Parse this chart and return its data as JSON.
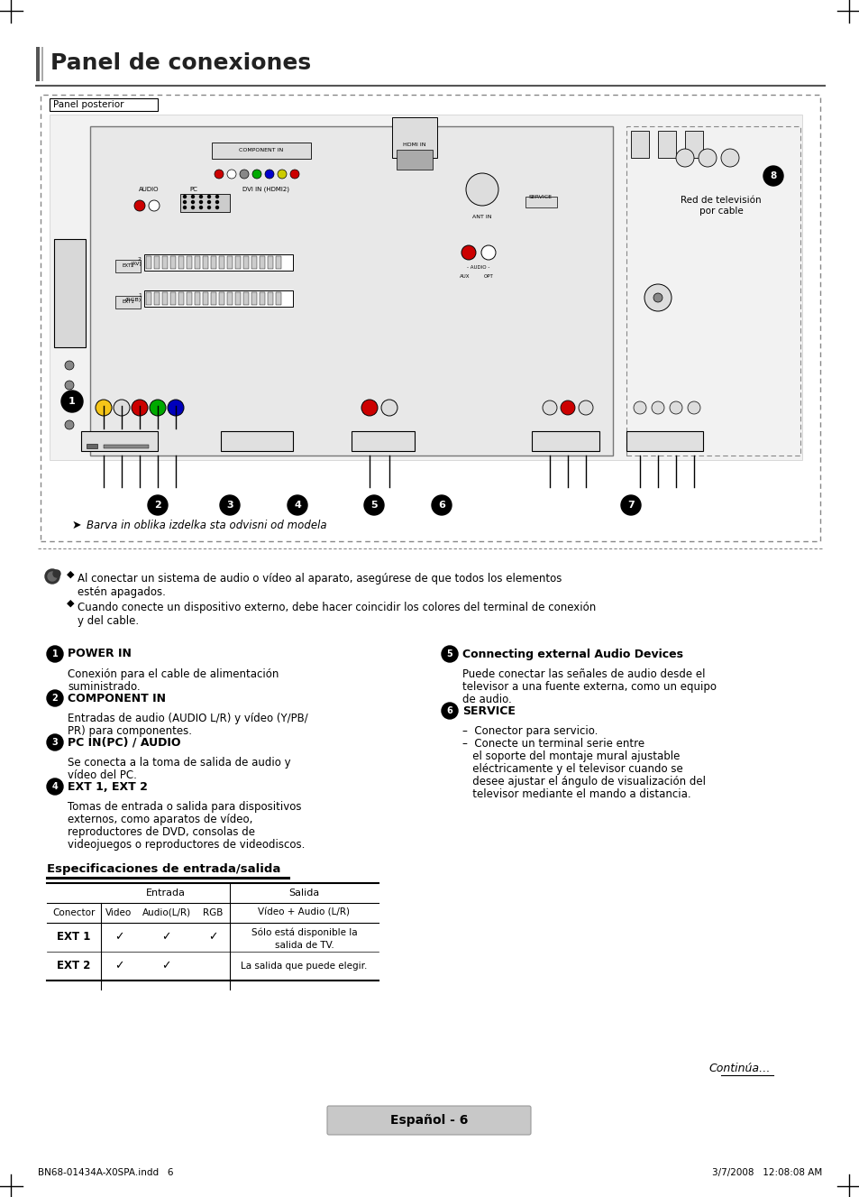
{
  "title": "Panel de conexiones",
  "bg_color": "#ffffff",
  "panel_label": "Panel posterior",
  "barva_note": "Barva in oblika izdelka sta odvisni od modela",
  "note1_line1": "Al conectar un sistema de audio o vídeo al aparato, asegúrese de que todos los elementos",
  "note1_line2": "estén apagados.",
  "note2_line1": "Cuando conecte un dispositivo externo, debe hacer coincidir los colores del terminal de conexión",
  "note2_line2": "y del cable.",
  "items": [
    {
      "num": "1",
      "title": "POWER IN",
      "body": [
        "Conexión para el cable de alimentación",
        "suministrado."
      ]
    },
    {
      "num": "2",
      "title": "COMPONENT IN",
      "body": [
        "Entradas de audio (AUDIO L/R) y vídeo (Y/PB/",
        "PR) para componentes."
      ]
    },
    {
      "num": "3",
      "title": "PC IN(PC) / AUDIO",
      "body": [
        "Se conecta a la toma de salida de audio y",
        "vídeo del PC."
      ]
    },
    {
      "num": "4",
      "title": "EXT 1, EXT 2",
      "body": [
        "Tomas de entrada o salida para dispositivos",
        "externos, como aparatos de vídeo,",
        "reproductores de DVD, consolas de",
        "videojuegos o reproductores de videodiscos."
      ]
    },
    {
      "num": "5",
      "title": "Connecting external Audio Devices",
      "body": [
        "Puede conectar las señales de audio desde el",
        "televisor a una fuente externa, como un equipo",
        "de audio."
      ]
    },
    {
      "num": "6",
      "title": "SERVICE",
      "body": [
        "–  Conector para servicio.",
        "–  Conecte un terminal serie entre",
        "   el soporte del montaje mural ajustable",
        "   eléctricamente y el televisor cuando se",
        "   desee ajustar el ángulo de visualización del",
        "   televisor mediante el mando a distancia."
      ]
    }
  ],
  "table_title": "Especificaciones de entrada/salida",
  "table_rows": [
    [
      "EXT 1",
      "✓",
      "✓",
      "✓",
      "Sólo está disponible la",
      "salida de TV."
    ],
    [
      "EXT 2",
      "✓",
      "✓",
      "",
      "La salida que puede elegir.",
      ""
    ]
  ],
  "footer_label": "Español - 6",
  "continue_text": "Continúa…",
  "file_info": "BN68-01434A-X0SPA.indd   6",
  "date_info": "3/7/2008   12:08:08 AM"
}
